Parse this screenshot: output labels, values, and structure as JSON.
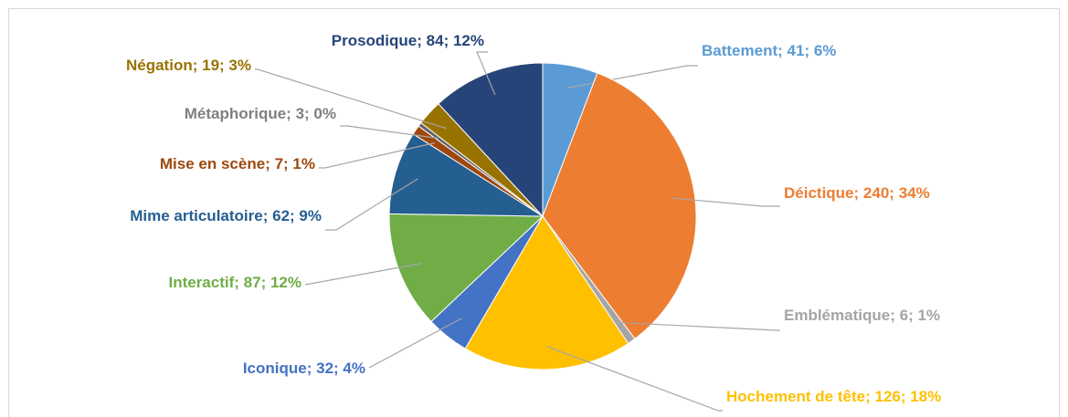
{
  "chart_data": {
    "type": "pie",
    "categories": [
      "Battement",
      "Déictique",
      "Emblématique",
      "Hochement de tête",
      "Iconique",
      "Interactif",
      "Mime articulatoire",
      "Mise en scène",
      "Métaphorique",
      "Négation",
      "Prosodique"
    ],
    "values": [
      41,
      240,
      6,
      126,
      32,
      87,
      62,
      7,
      3,
      19,
      84
    ],
    "percent_labels": [
      "6%",
      "34%",
      "1%",
      "18%",
      "4%",
      "12%",
      "9%",
      "1%",
      "0%",
      "3%",
      "12%"
    ],
    "label_separator": "; ",
    "colors": [
      "#5b9bd5",
      "#ed7d31",
      "#a5a5a5",
      "#ffc000",
      "#4472c4",
      "#70ad47",
      "#255e91",
      "#9e480e",
      "#636363",
      "#997300",
      "#264478"
    ],
    "label_colors": [
      "#5b9bd5",
      "#ed7d31",
      "#a5a5a5",
      "#ffc000",
      "#4472c4",
      "#70ad47",
      "#255e91",
      "#9e480e",
      "#7f7f7f",
      "#997300",
      "#264478"
    ]
  }
}
